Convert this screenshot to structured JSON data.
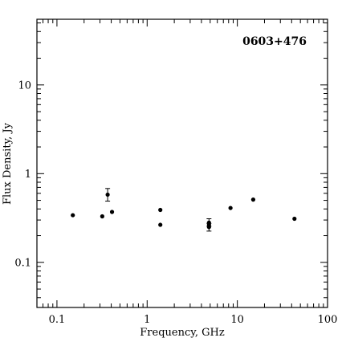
{
  "chart_data": {
    "type": "scatter",
    "title": "0603+476",
    "xlabel": "Frequency, GHz",
    "ylabel": "Flux Density, Jy",
    "xscale": "log",
    "yscale": "log",
    "xlim": [
      0.06,
      100
    ],
    "ylim": [
      0.031,
      55
    ],
    "x_tick_labels": [
      "0.1",
      "1",
      "10",
      "100"
    ],
    "y_tick_labels": [
      "0.1",
      "1",
      "10"
    ],
    "grid": false,
    "legend": "none",
    "points": [
      {
        "x": 0.15,
        "y": 0.34
      },
      {
        "x": 0.318,
        "y": 0.33
      },
      {
        "x": 0.365,
        "y": 0.58,
        "yerr_low": 0.49,
        "yerr_high": 0.68
      },
      {
        "x": 0.408,
        "y": 0.37
      },
      {
        "x": 1.4,
        "y": 0.39
      },
      {
        "x": 1.4,
        "y": 0.265
      },
      {
        "x": 4.85,
        "y": 0.28,
        "yerr_low": 0.255,
        "yerr_high": 0.31
      },
      {
        "x": 4.85,
        "y": 0.265
      },
      {
        "x": 4.85,
        "y": 0.25,
        "yerr_low": 0.225,
        "yerr_high": 0.275
      },
      {
        "x": 8.4,
        "y": 0.41
      },
      {
        "x": 15,
        "y": 0.51
      },
      {
        "x": 43,
        "y": 0.31
      }
    ],
    "color": "#000000"
  }
}
